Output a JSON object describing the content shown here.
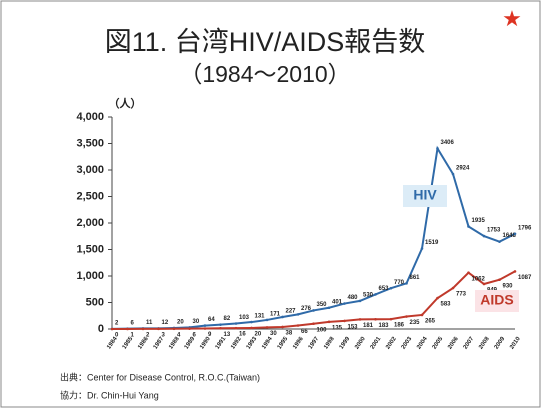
{
  "chart_data": {
    "type": "line",
    "title": "図11. 台湾HIV/AIDS報告数",
    "subtitle": "（1984〜2010）",
    "y_label": "（人）",
    "categories": [
      "1984",
      "1985",
      "1986",
      "1987",
      "1988",
      "1989",
      "1990",
      "1991",
      "1992",
      "1993",
      "1994",
      "1995",
      "1996",
      "1997",
      "1998",
      "1999",
      "2000",
      "2001",
      "2002",
      "2003",
      "2004",
      "2005",
      "2006",
      "2007",
      "2008",
      "2009",
      "2010"
    ],
    "series": [
      {
        "name": "HIV",
        "color": "#2f6aa8",
        "values": [
          2,
          6,
          11,
          12,
          20,
          30,
          64,
          82,
          103,
          131,
          171,
          227,
          276,
          350,
          401,
          480,
          530,
          653,
          770,
          861,
          1519,
          3406,
          2924,
          1935,
          1753,
          1648,
          1796
        ]
      },
      {
        "name": "AIDS",
        "color": "#c0392b",
        "values": [
          0,
          1,
          2,
          3,
          4,
          6,
          9,
          13,
          16,
          20,
          30,
          38,
          66,
          100,
          135,
          153,
          181,
          183,
          186,
          235,
          265,
          583,
          773,
          1062,
          849,
          930,
          1087
        ]
      }
    ],
    "ylim": [
      0,
      4000
    ],
    "yticks": [
      0,
      500,
      {
        "value": 1000,
        "label": "1,000"
      },
      {
        "value": 1500,
        "label": "1,500"
      },
      {
        "value": 2000,
        "label": "2,000"
      },
      {
        "value": 2500,
        "label": "2,500"
      },
      {
        "value": 3000,
        "label": "3,000"
      },
      {
        "value": 3500,
        "label": "3,500"
      },
      {
        "value": 4000,
        "label": "4,000"
      }
    ],
    "source": "出典：Center for Disease Control, R.O.C.(Taiwan)",
    "credit": "協力：Dr.  Chin-Hui Yang"
  }
}
